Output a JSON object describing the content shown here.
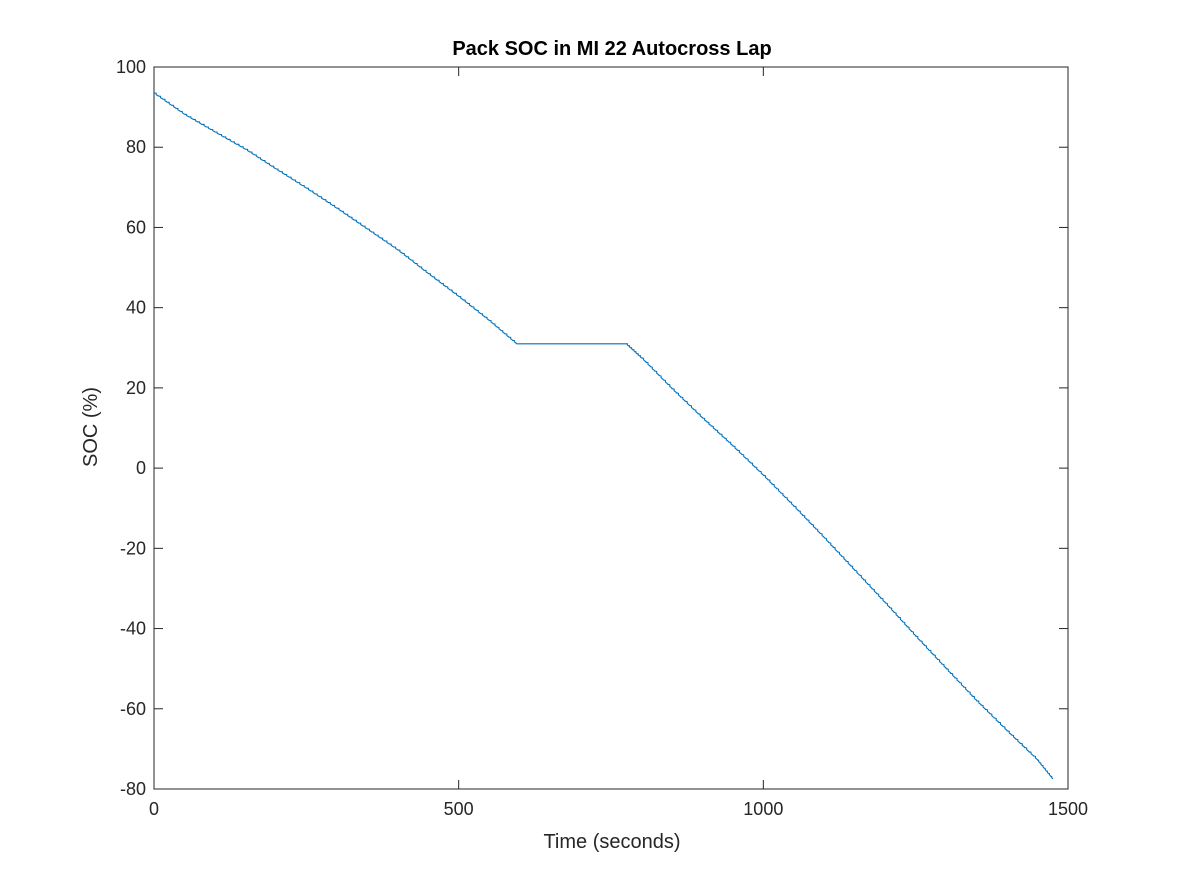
{
  "chart_data": {
    "type": "line",
    "title": "Pack SOC in MI 22 Autocross Lap",
    "xlabel": "Time (seconds)",
    "ylabel": "SOC (%)",
    "xlim": [
      0,
      1500
    ],
    "ylim": [
      -80,
      100
    ],
    "xticks": [
      0,
      500,
      1000,
      1500
    ],
    "yticks": [
      -80,
      -60,
      -40,
      -20,
      0,
      20,
      40,
      60,
      80,
      100
    ],
    "grid": false,
    "line_color": "#0072BD",
    "series": [
      {
        "x": [
          0,
          50,
          100,
          150,
          200,
          250,
          300,
          350,
          400,
          450,
          500,
          550,
          595,
          700,
          775,
          800,
          850,
          900,
          950,
          1000,
          1050,
          1100,
          1150,
          1200,
          1250,
          1300,
          1350,
          1400,
          1450,
          1475
        ],
        "y": [
          93.5,
          88.2,
          83.8,
          79.5,
          74.6,
          69.8,
          64.8,
          59.6,
          54.4,
          48.5,
          42.8,
          36.8,
          31.0,
          31.0,
          31.0,
          27.5,
          19.8,
          12.5,
          5.5,
          -1.8,
          -9.5,
          -17.4,
          -25.5,
          -33.6,
          -41.9,
          -50.0,
          -58.0,
          -65.5,
          -72.8,
          -77.5
        ]
      }
    ]
  }
}
